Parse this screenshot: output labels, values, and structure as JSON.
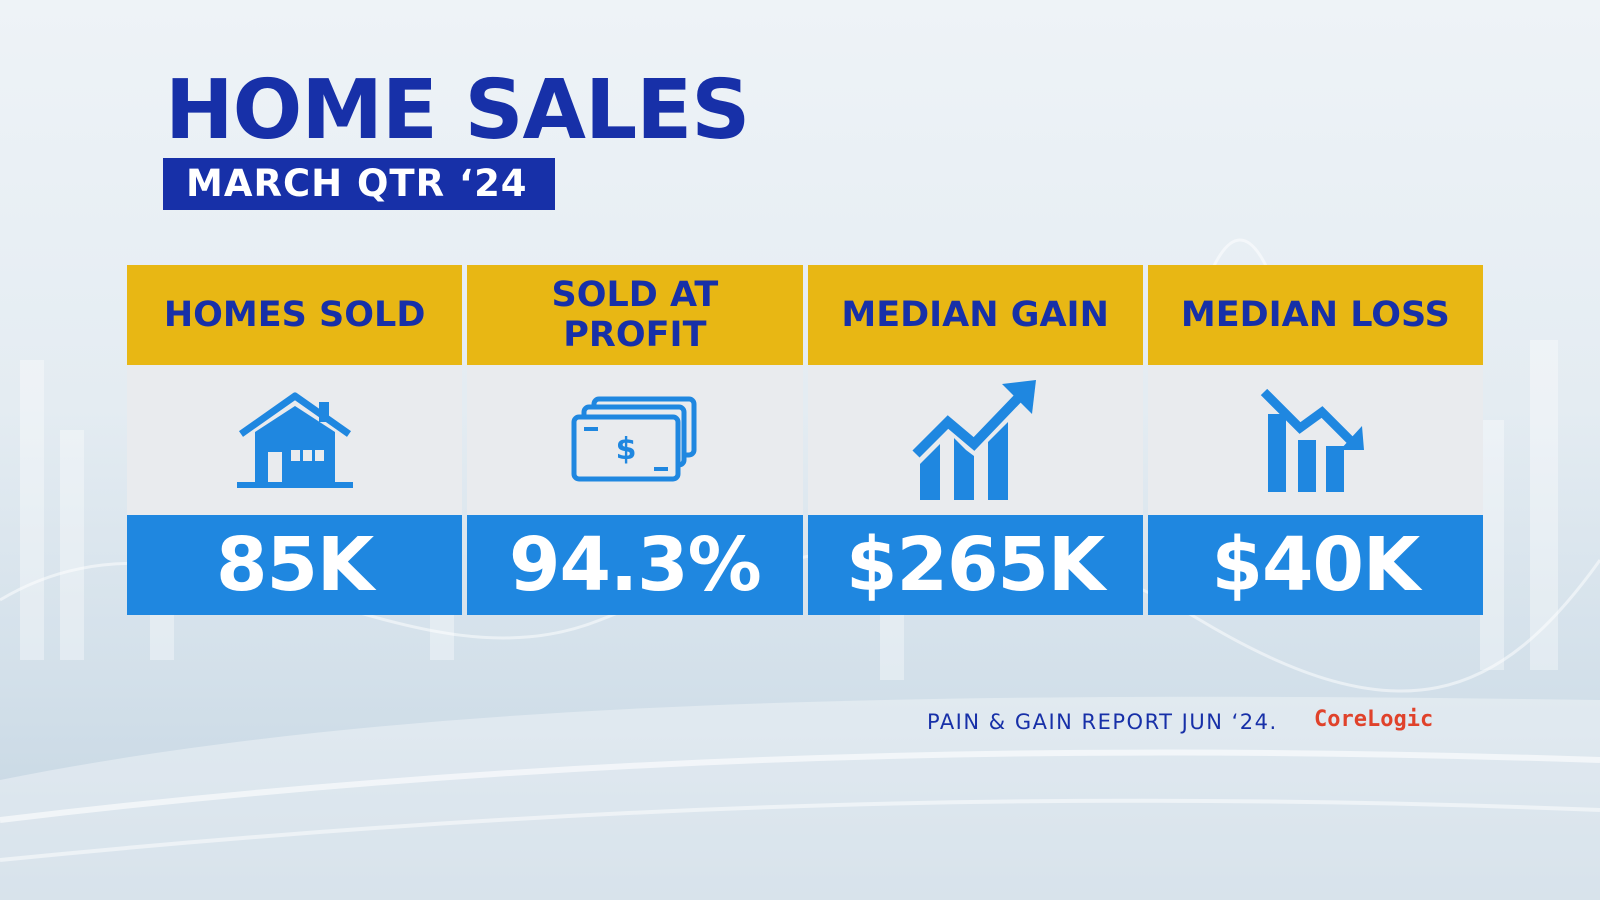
{
  "title": "HOME SALES",
  "subtitle": "MARCH QTR ‘24",
  "cards": [
    {
      "label": "HOMES SOLD",
      "icon": "house-icon",
      "value": "85K"
    },
    {
      "label": "SOLD AT PROFIT",
      "icon": "banknotes-icon",
      "value": "94.3%"
    },
    {
      "label": "MEDIAN GAIN",
      "icon": "trend-up-icon",
      "value": "$265K"
    },
    {
      "label": "MEDIAN LOSS",
      "icon": "trend-down-icon",
      "value": "$40K"
    }
  ],
  "source": "PAIN & GAIN REPORT JUN ‘24.",
  "brand": "CoreLogic",
  "colors": {
    "navy": "#1730a8",
    "gold": "#e8b714",
    "blue": "#1f87e0",
    "brand_red": "#e0422b"
  }
}
